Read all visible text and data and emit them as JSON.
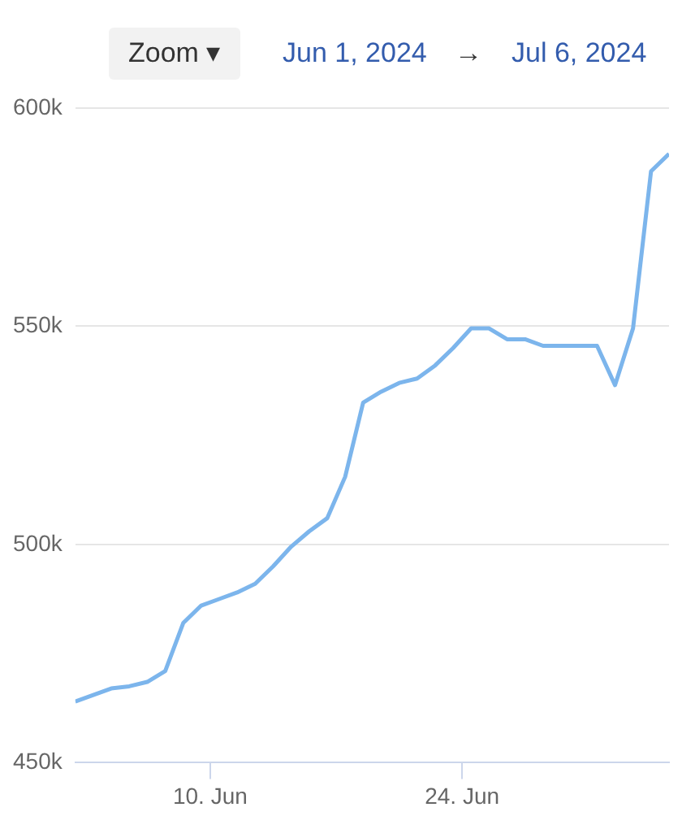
{
  "chart_data": {
    "type": "line",
    "annotations": [
      "Zoom ▾",
      "Jun 1, 2024",
      "→",
      "Jul 6, 2024"
    ],
    "x": [
      "2024-06-02T12:00",
      "2024-06-03T12:00",
      "2024-06-04T12:00",
      "2024-06-05T12:00",
      "2024-06-06T12:00",
      "2024-06-07T12:00",
      "2024-06-08T12:00",
      "2024-06-09T12:00",
      "2024-06-10T12:00",
      "2024-06-11T12:00",
      "2024-06-12T12:00",
      "2024-06-13T12:00",
      "2024-06-14T12:00",
      "2024-06-15T12:00",
      "2024-06-16T12:00",
      "2024-06-17T12:00",
      "2024-06-18T12:00",
      "2024-06-19T12:00",
      "2024-06-20T12:00",
      "2024-06-21T12:00",
      "2024-06-22T12:00",
      "2024-06-23T12:00",
      "2024-06-24T12:00",
      "2024-06-25T12:00",
      "2024-06-26T12:00",
      "2024-06-27T12:00",
      "2024-06-28T12:00",
      "2024-06-29T12:00",
      "2024-06-30T12:00",
      "2024-07-01T12:00",
      "2024-07-02T12:00",
      "2024-07-03T12:00",
      "2024-07-04T12:00",
      "2024-07-05T12:00"
    ],
    "series": [
      {
        "color": "#7cb5ec",
        "values": [
          464000,
          465500,
          467000,
          467500,
          468500,
          471000,
          482000,
          486000,
          487500,
          489000,
          491000,
          495000,
          499500,
          503000,
          506000,
          515500,
          532500,
          535000,
          537000,
          538000,
          541000,
          545000,
          549500,
          549500,
          547000,
          547000,
          545500,
          545500,
          545500,
          545500,
          536500,
          549500,
          585500,
          589500
        ]
      }
    ],
    "xlim": [
      "2024-06-02T12:00",
      "2024-07-05T12:00"
    ],
    "xticks": [
      {
        "value": "2024-06-10",
        "label": "10. Jun"
      },
      {
        "value": "2024-06-24",
        "label": "24. Jun"
      }
    ],
    "ylim": [
      450000,
      600000
    ],
    "yticks": [
      {
        "value": 450000,
        "label": "450k"
      },
      {
        "value": 500000,
        "label": "500k"
      },
      {
        "value": 550000,
        "label": "550k"
      },
      {
        "value": 600000,
        "label": "600k"
      }
    ],
    "grid": "y",
    "legend": false,
    "marker": "none",
    "line_style": "solid"
  }
}
